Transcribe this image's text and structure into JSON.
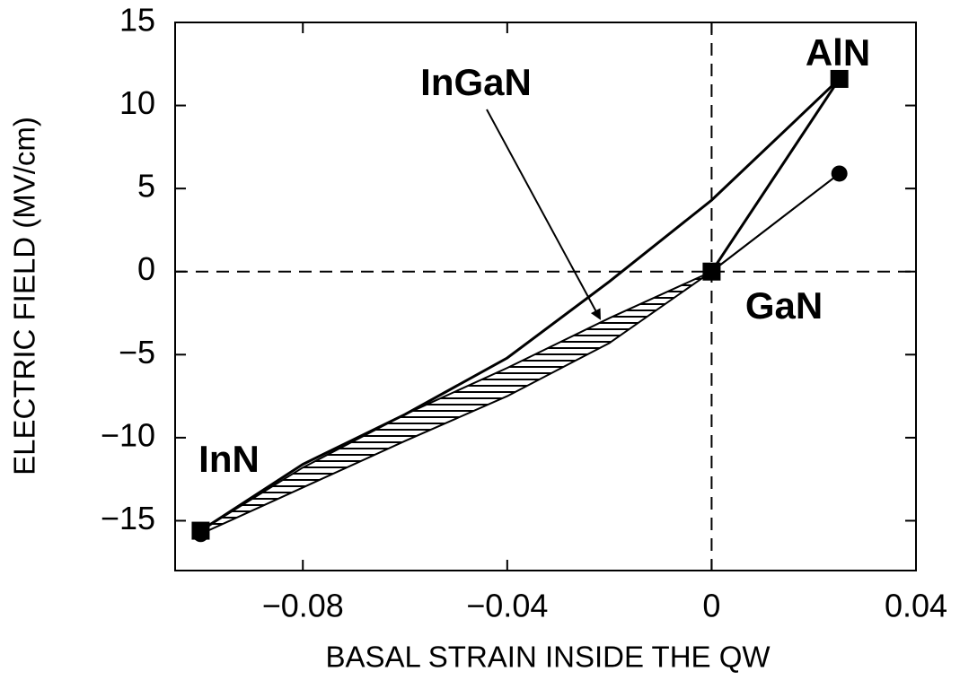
{
  "chart_data": {
    "type": "line",
    "xlabel": "BASAL STRAIN  INSIDE  THE QW",
    "ylabel": "ELECTRIC FIELD (MV/cm)",
    "xlim": [
      -0.105,
      0.04
    ],
    "ylim": [
      -18,
      15
    ],
    "xticks": [
      {
        "value": -0.08,
        "label": "−0.08"
      },
      {
        "value": -0.04,
        "label": "−0.04"
      },
      0,
      0.04
    ],
    "yticks": [
      {
        "value": -15,
        "label": "−15"
      },
      {
        "value": -10,
        "label": "−10"
      },
      {
        "value": -5,
        "label": "−5"
      },
      0,
      5,
      10,
      15
    ],
    "zero_lines": true,
    "series": [
      {
        "x": [
          -0.1,
          -0.08,
          -0.06,
          -0.04,
          -0.02,
          0,
          0.025
        ],
        "values": [
          -15.6,
          -11.6,
          -8.6,
          -5.2,
          -0.6,
          4.3,
          11.6
        ],
        "color": "#000000",
        "style": "solid"
      },
      {
        "x": [
          0,
          0.025
        ],
        "values": [
          0,
          11.6
        ],
        "color": "#000000",
        "style": "solid"
      },
      {
        "x": [
          -0.1,
          -0.08,
          -0.06,
          -0.04,
          -0.02,
          0,
          0.025
        ],
        "values": [
          -15.6,
          -11.8,
          -8.6,
          -5.8,
          -2.8,
          0,
          5.9
        ],
        "color": "#000000",
        "style": "hatch-top"
      },
      {
        "x": [
          -0.1,
          -0.08,
          -0.06,
          -0.04,
          -0.02,
          0,
          0.025
        ],
        "values": [
          -15.8,
          -13,
          -10.2,
          -7.5,
          -4.3,
          0,
          5.9
        ],
        "color": "#000000",
        "style": "hatch-bottom"
      },
      {
        "x": [
          -0.1,
          0,
          0.025
        ],
        "values": [
          -15.6,
          0,
          11.6
        ],
        "color": "#000000",
        "marker": "square"
      },
      {
        "x": [
          -0.1,
          0.025
        ],
        "values": [
          -15.8,
          5.9
        ],
        "color": "#000000",
        "marker": "circle"
      }
    ],
    "annotations": [
      "InN",
      "GaN",
      "AlN",
      "InGaN"
    ]
  }
}
